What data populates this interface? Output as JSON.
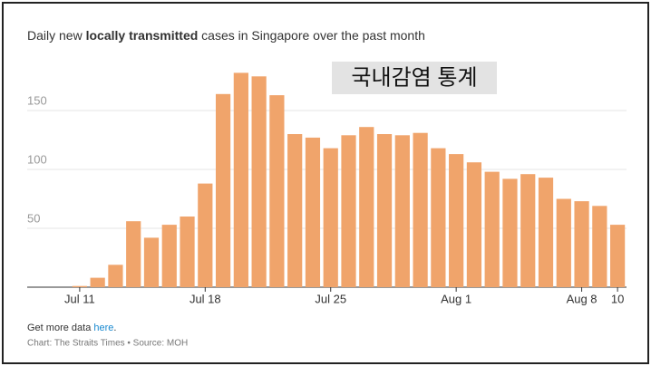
{
  "chart_data": {
    "type": "bar",
    "title_start": "Daily new ",
    "title_bold": "locally transmitted",
    "title_end": " cases in Singapore over the past month",
    "overlay": "국내감염 통계",
    "categories": [
      "Jul 11",
      null,
      null,
      null,
      null,
      null,
      null,
      "Jul 18",
      null,
      null,
      null,
      null,
      null,
      null,
      "Jul 25",
      null,
      null,
      null,
      null,
      null,
      null,
      "Aug 1",
      null,
      null,
      null,
      null,
      null,
      null,
      "Aug 8",
      null,
      "10"
    ],
    "values": [
      1,
      8,
      19,
      56,
      42,
      53,
      60,
      88,
      164,
      182,
      179,
      163,
      130,
      127,
      118,
      129,
      136,
      130,
      129,
      131,
      118,
      113,
      106,
      98,
      92,
      96,
      93,
      75,
      73,
      69,
      53
    ],
    "color": "#f0a46b",
    "ylim": [
      0,
      190
    ],
    "yticks": [
      50,
      100,
      150
    ],
    "grid": true,
    "footer_start": "Get more data ",
    "footer_link": "here",
    "footer_end": ".",
    "source": "Chart: The Straits Times • Source: MOH"
  }
}
